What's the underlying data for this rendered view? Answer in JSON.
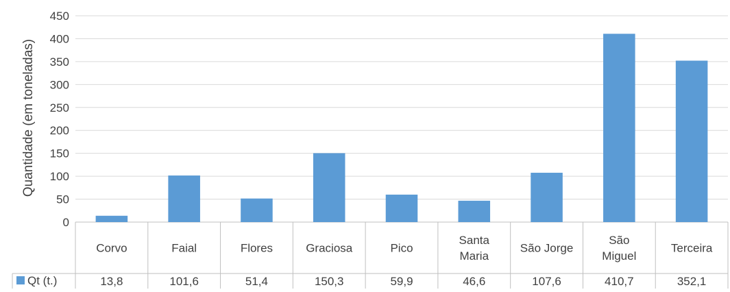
{
  "chart_data": {
    "type": "bar",
    "ylabel": "Quantidade (em toneladas)",
    "ylim": [
      0,
      450
    ],
    "yticks": [
      0,
      50,
      100,
      150,
      200,
      250,
      300,
      350,
      400,
      450
    ],
    "categories": [
      [
        "Corvo"
      ],
      [
        "Faial"
      ],
      [
        "Flores"
      ],
      [
        "Graciosa"
      ],
      [
        "Pico"
      ],
      [
        "Santa",
        "Maria"
      ],
      [
        "São Jorge"
      ],
      [
        "São",
        "Miguel"
      ],
      [
        "Terceira"
      ]
    ],
    "series": [
      {
        "name": "Qt (t.)",
        "values": [
          13.8,
          101.6,
          51.4,
          150.3,
          59.9,
          46.6,
          107.6,
          410.7,
          352.1
        ],
        "value_labels": [
          "13,8",
          "101,6",
          "51,4",
          "150,3",
          "59,9",
          "46,6",
          "107,6",
          "410,7",
          "352,1"
        ]
      }
    ],
    "grid": true,
    "legend": "data-table",
    "colors": {
      "bar": "#5B9BD5",
      "grid": "#D9D9D9",
      "axis": "#BFBFBF",
      "text": "#404040"
    }
  }
}
